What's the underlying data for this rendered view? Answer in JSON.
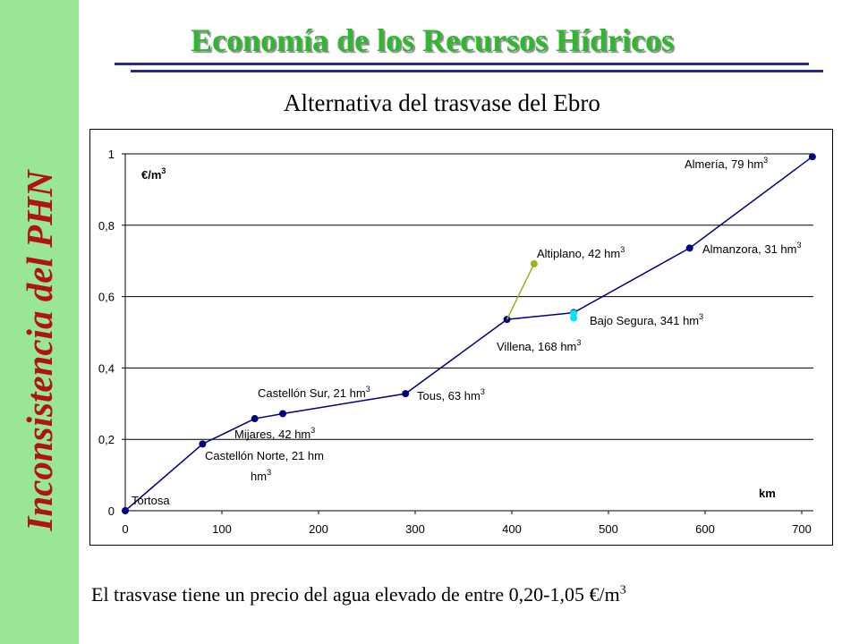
{
  "slide": {
    "side_title": "Inconsistencia del PHN",
    "title": "Economía de los Recursos Hídricos",
    "subtitle": "Alternativa del trasvase del Ebro",
    "footer": "El trasvase tiene un precio del agua elevado de entre 0,20-1,05 €/m",
    "footer_sup": "3"
  },
  "colors": {
    "sidebar_bg": "#99e699",
    "side_title": "#b01313",
    "title": "#2eb82e",
    "rule": "#2a2a8c",
    "main_series": "#000080",
    "altiplano_series": "#99b31a",
    "bajo_segura_series": "#00e5ff"
  },
  "chart_data": {
    "type": "line",
    "ylabel": "€/m",
    "ylabel_sup": "3",
    "xlabel": "km",
    "xlim": [
      0,
      700
    ],
    "ylim": [
      0,
      1
    ],
    "x_ticks": [
      "0",
      "100",
      "200",
      "300",
      "400",
      "500",
      "600",
      "700"
    ],
    "y_ticks": [
      "0",
      "0,2",
      "0,4",
      "0,6",
      "0,8",
      "1"
    ],
    "grid": "horizontal",
    "series": [
      {
        "points": [
          {
            "x": 0,
            "y": 0.0,
            "label": "Tortosa"
          },
          {
            "x": 80,
            "y": 0.187,
            "label": "Castellón Norte, 21 hm",
            "sup": "3"
          },
          {
            "x": 134,
            "y": 0.258,
            "label": "Mijares, 42 hm",
            "sup": "3"
          },
          {
            "x": 163,
            "y": 0.272,
            "label": "Castellón Sur, 21 hm",
            "sup": "3"
          },
          {
            "x": 290,
            "y": 0.328,
            "label": "Tous, 63 hm",
            "sup": "3"
          },
          {
            "x": 395,
            "y": 0.536,
            "label": "Villena, 168 hm",
            "sup": "3"
          },
          {
            "x": 464,
            "y": 0.555
          },
          {
            "x": 584,
            "y": 0.736,
            "label": "Almanzora, 31 hm",
            "sup": "3"
          },
          {
            "x": 711,
            "y": 0.992,
            "label": "Almería, 79 hm",
            "sup": "3"
          }
        ]
      },
      {
        "points": [
          {
            "x": 395,
            "y": 0.536
          },
          {
            "x": 423,
            "y": 0.692,
            "label": "Altiplano, 42 hm",
            "sup": "3"
          }
        ]
      },
      {
        "points": [
          {
            "x": 464,
            "y": 0.553
          },
          {
            "x": 464,
            "y": 0.54,
            "label": "Bajo Segura, 341 hm",
            "sup": "3"
          }
        ]
      }
    ]
  }
}
